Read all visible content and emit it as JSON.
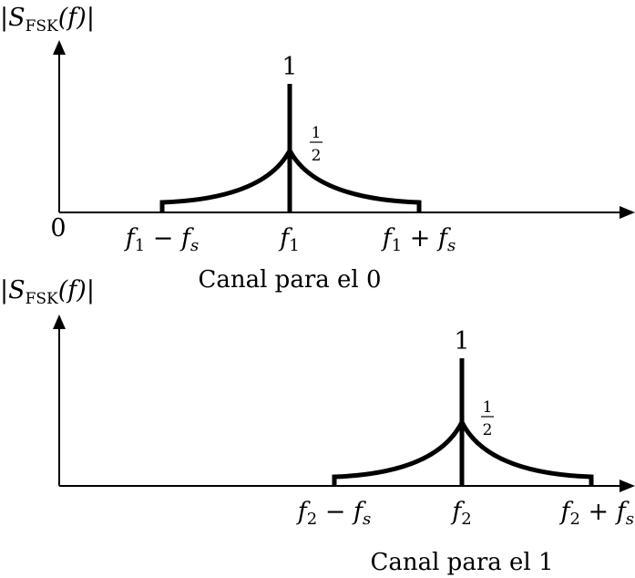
{
  "panels": [
    {
      "id": "top",
      "ylabel": "|S_FSK(f)|",
      "origin_label": "0",
      "peak_value": "1",
      "half_value": "1/2",
      "tick_labels": [
        "f1 − fs",
        "f1",
        "f1 + fs"
      ],
      "caption": "Canal para el 0"
    },
    {
      "id": "bottom",
      "ylabel": "|S_FSK(f)|",
      "peak_value": "1",
      "half_value": "1/2",
      "tick_labels": [
        "f2 − fs",
        "f2",
        "f2 + fs"
      ],
      "caption": "Canal para el 1"
    }
  ],
  "text": {
    "ylabel_prefix": "S",
    "ylabel_sub": "FSK",
    "ylabel_arg": "(f)",
    "origin": "0",
    "one": "1",
    "half_num": "1",
    "half_den": "2",
    "top_t1_var": "f",
    "top_t1_sub": "1",
    "top_t1_op": " − ",
    "top_t1_var2": "f",
    "top_t1_sub2": "s",
    "top_t2_var": "f",
    "top_t2_sub": "1",
    "top_t3_var": "f",
    "top_t3_sub": "1",
    "top_t3_op": " + ",
    "top_t3_var2": "f",
    "top_t3_sub2": "s",
    "bot_t1_var": "f",
    "bot_t1_sub": "2",
    "bot_t1_op": " − ",
    "bot_t1_var2": "f",
    "bot_t1_sub2": "s",
    "bot_t2_var": "f",
    "bot_t2_sub": "2",
    "bot_t3_var": "f",
    "bot_t3_sub": "2",
    "bot_t3_op": " + ",
    "bot_t3_var2": "f",
    "bot_t3_sub2": "s",
    "caption_top": "Canal para el 0",
    "caption_bottom": "Canal para el 1"
  },
  "colors": {
    "ink": "#000000",
    "background": "#ffffff"
  }
}
